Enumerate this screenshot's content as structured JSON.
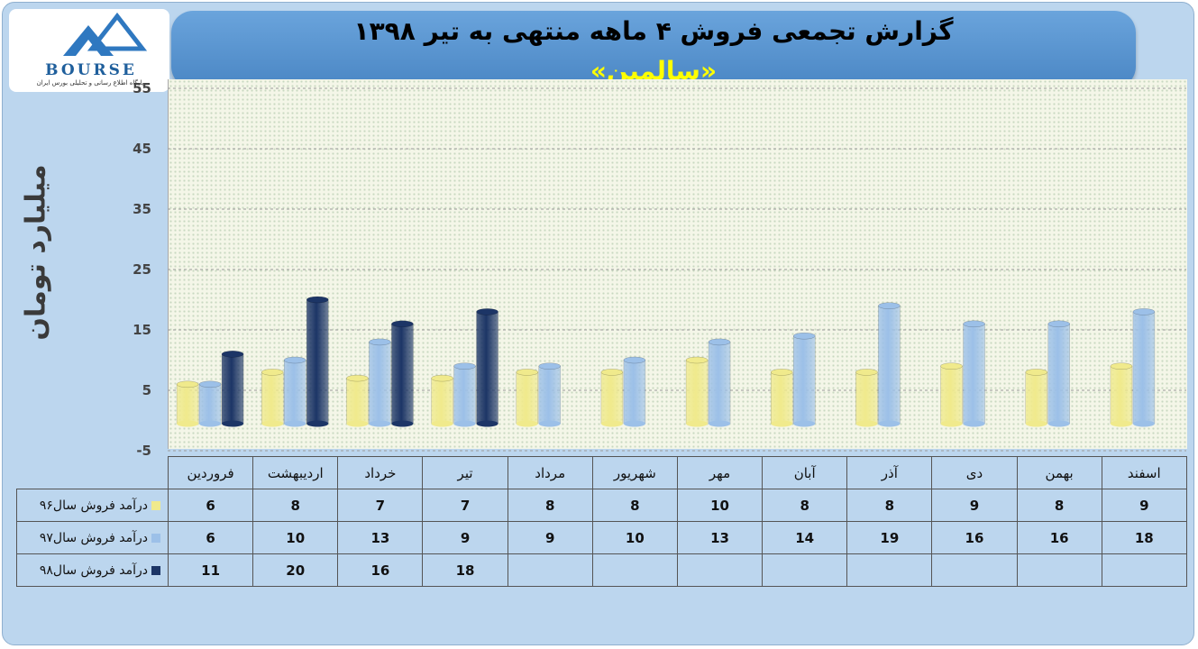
{
  "header": {
    "title": "گزارش تجمعی فروش ۴ ماهه منتهی به تیر ۱۳۹۸",
    "subtitle": "«سالمین»"
  },
  "logo": {
    "word": "BOURSE",
    "tagline": "پایگاه اطلاع رسانی و تحلیلی بورس ایران"
  },
  "colors": {
    "series96": "#f0ea8c",
    "series97": "#9cc0e8",
    "series98": "#1c3566"
  },
  "chart_data": {
    "type": "bar",
    "ylabel": "میلیارد تومان",
    "ylim": [
      -5,
      55
    ],
    "yticks": [
      -5,
      5,
      15,
      25,
      35,
      45,
      55
    ],
    "ytick_labels": [
      "-5",
      "5",
      "15",
      "25",
      "35",
      "45",
      "55"
    ],
    "grid": "horizontal dashed",
    "categories": [
      "فروردین",
      "اردیبهشت",
      "خرداد",
      "تیر",
      "مرداد",
      "شهریور",
      "مهر",
      "آبان",
      "آذر",
      "دی",
      "بهمن",
      "اسفند"
    ],
    "series": [
      {
        "name": "درآمد فروش سال۹۶",
        "values": [
          6,
          8,
          7,
          7,
          8,
          8,
          10,
          8,
          8,
          9,
          8,
          9
        ],
        "value_labels": [
          "6",
          "8",
          "7",
          "7",
          "8",
          "8",
          "10",
          "8",
          "8",
          "9",
          "8",
          "9"
        ]
      },
      {
        "name": "درآمد فروش سال۹۷",
        "values": [
          6,
          10,
          13,
          9,
          9,
          10,
          13,
          14,
          19,
          16,
          16,
          18
        ],
        "value_labels": [
          "6",
          "10",
          "13",
          "9",
          "9",
          "10",
          "13",
          "14",
          "19",
          "16",
          "16",
          "18"
        ]
      },
      {
        "name": "درآمد فروش سال۹۸",
        "values": [
          11,
          20,
          16,
          18,
          null,
          null,
          null,
          null,
          null,
          null,
          null,
          null
        ],
        "value_labels": [
          "11",
          "20",
          "16",
          "18",
          "",
          "",
          "",
          "",
          "",
          "",
          "",
          ""
        ]
      }
    ]
  }
}
